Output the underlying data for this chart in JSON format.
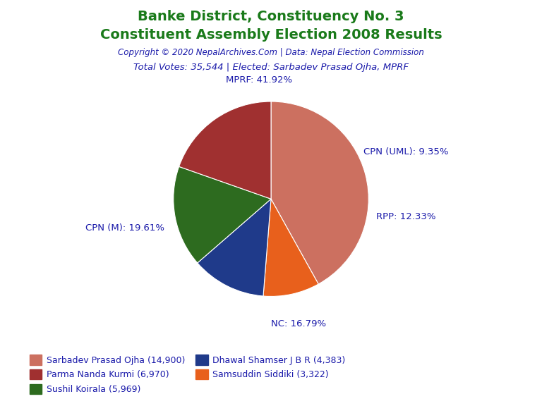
{
  "title1": "Banke District, Constituency No. 3",
  "title2": "Constituent Assembly Election 2008 Results",
  "copyright": "Copyright © 2020 NepalArchives.Com | Data: Nepal Election Commission",
  "subtitle": "Total Votes: 35,544 | Elected: Sarbadev Prasad Ojha, MPRF",
  "slices": [
    {
      "label": "MPRF",
      "pct": 41.92,
      "color": "#cc7060"
    },
    {
      "label": "CPN (UML)",
      "pct": 9.35,
      "color": "#e8601c"
    },
    {
      "label": "RPP",
      "pct": 12.33,
      "color": "#1f3a8a"
    },
    {
      "label": "NC",
      "pct": 16.79,
      "color": "#2d6b1f"
    },
    {
      "label": "CPN (M)",
      "pct": 19.61,
      "color": "#a03030"
    }
  ],
  "legend_data": [
    {
      "name": "Sarbadev Prasad Ojha (14,900)",
      "color": "#cc7060"
    },
    {
      "name": "Parma Nanda Kurmi (6,970)",
      "color": "#a03030"
    },
    {
      "name": "Sushil Koirala (5,969)",
      "color": "#2d6b1f"
    },
    {
      "name": "Dhawal Shamser J B R (4,383)",
      "color": "#1f3a8a"
    },
    {
      "name": "Samsuddin Siddiki (3,322)",
      "color": "#e8601c"
    }
  ],
  "title_color": "#1a7a1a",
  "copyright_color": "#1a1aaa",
  "subtitle_color": "#1a1aaa",
  "label_color": "#1a1aaa",
  "bg_color": "#ffffff",
  "startangle": 90
}
